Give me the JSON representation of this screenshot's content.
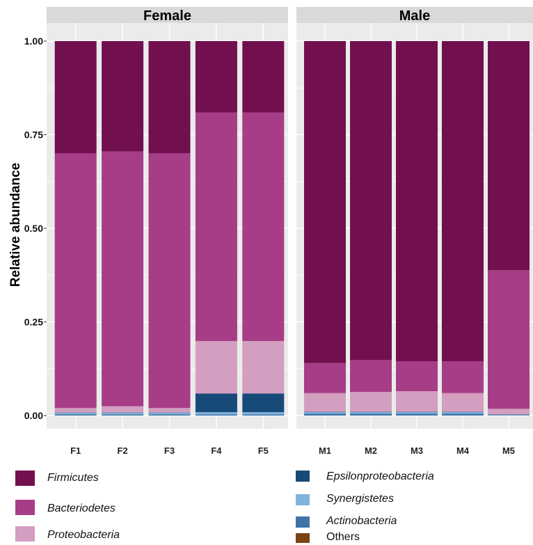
{
  "chart_data": {
    "type": "bar",
    "stacked": true,
    "ylabel": "Relative abundance",
    "xlabel": "",
    "ylim": [
      0,
      1
    ],
    "yticks": [
      "0.00",
      "0.25",
      "0.50",
      "0.75",
      "1.00"
    ],
    "grid": true,
    "legend_position": "bottom",
    "panels": [
      {
        "title": "Female",
        "categories": [
          "F1",
          "F2",
          "F3",
          "F4",
          "F5"
        ]
      },
      {
        "title": "Male",
        "categories": [
          "M1",
          "M2",
          "M3",
          "M4",
          "M5"
        ]
      }
    ],
    "categories": [
      "F1",
      "F2",
      "F3",
      "F4",
      "F5",
      "M1",
      "M2",
      "M3",
      "M4",
      "M5"
    ],
    "series": [
      {
        "name": "Others",
        "color": "#7a4416",
        "values": [
          0,
          0,
          0,
          0,
          0,
          0,
          0,
          0,
          0,
          0
        ]
      },
      {
        "name": "Actinobacteria",
        "color": "#3f73a6",
        "values": [
          0.003,
          0.003,
          0.003,
          0.003,
          0.003,
          0.005,
          0.005,
          0.005,
          0.005,
          0.001
        ]
      },
      {
        "name": "Synergistetes",
        "color": "#7fb3de",
        "values": [
          0.004,
          0.004,
          0.004,
          0.006,
          0.006,
          0.004,
          0.004,
          0.004,
          0.004,
          0.001
        ]
      },
      {
        "name": "Epsilonproteobacteria",
        "color": "#184a79",
        "values": [
          0.001,
          0.001,
          0.001,
          0.05,
          0.05,
          0.001,
          0.001,
          0.001,
          0.001,
          0.001
        ]
      },
      {
        "name": "Proteobacteria",
        "color": "#d39ec0",
        "values": [
          0.012,
          0.017,
          0.012,
          0.14,
          0.14,
          0.05,
          0.053,
          0.055,
          0.05,
          0.015
        ]
      },
      {
        "name": "Bacteriodetes",
        "color": "#a63d86",
        "values": [
          0.68,
          0.68,
          0.68,
          0.61,
          0.61,
          0.08,
          0.085,
          0.08,
          0.085,
          0.37
        ]
      },
      {
        "name": "Firmicutes",
        "color": "#72104f",
        "values": [
          0.3,
          0.295,
          0.3,
          0.191,
          0.191,
          0.86,
          0.852,
          0.855,
          0.855,
          0.612
        ]
      }
    ]
  },
  "legend": {
    "left": [
      {
        "label": "Firmicutes",
        "color": "#72104f"
      },
      {
        "label": "Bacteriodetes",
        "color": "#a63d86"
      },
      {
        "label": "Proteobacteria",
        "color": "#d39ec0"
      }
    ],
    "right": [
      {
        "label": "Epsilonproteobacteria",
        "color": "#184a79"
      },
      {
        "label": "Synergistetes",
        "color": "#7fb3de"
      },
      {
        "label": "Actinobacteria",
        "color": "#3f73a6"
      },
      {
        "label": "Others",
        "color": "#7a4416"
      }
    ]
  },
  "colors": {
    "panel_bg": "#ebebeb",
    "strip_bg": "#d9d9d9",
    "grid": "#ffffff"
  }
}
